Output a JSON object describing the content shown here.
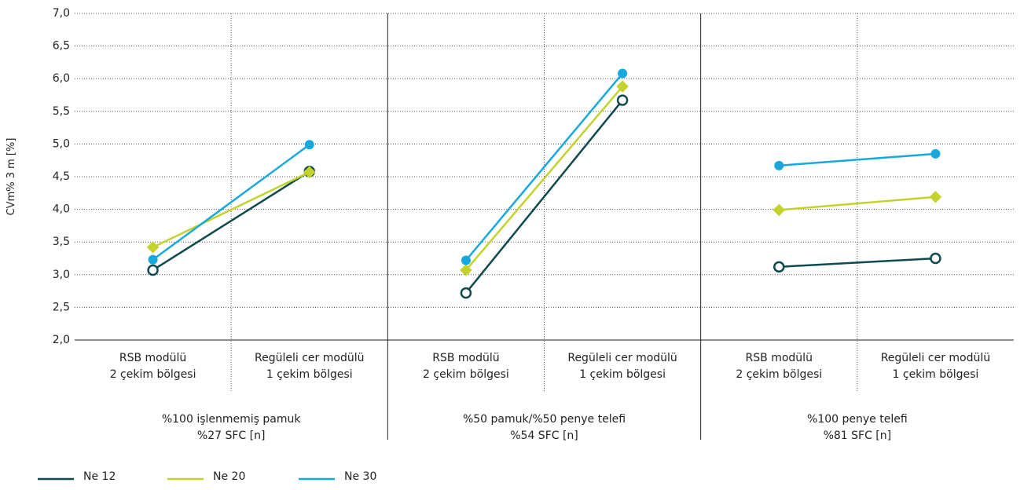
{
  "chart_data": {
    "type": "line",
    "ylabel": "CVm% 3 m [%]",
    "ylim": [
      2.0,
      7.0
    ],
    "y_ticks": [
      "2,0",
      "2,5",
      "3,0",
      "3,5",
      "4,0",
      "4,5",
      "5,0",
      "5,5",
      "6,0",
      "6,5",
      "7,0"
    ],
    "y_tick_values": [
      2.0,
      2.5,
      3.0,
      3.5,
      4.0,
      4.5,
      5.0,
      5.5,
      6.0,
      6.5,
      7.0
    ],
    "grid": "dotted horizontal and vertical",
    "categories": [
      [
        "RSB modülü",
        "2 çekim bölgesi"
      ],
      [
        "Regüleli cer modülü",
        "1 çekim bölgesi"
      ]
    ],
    "groups": [
      {
        "label_line1": "%100 işlenmemiş pamuk",
        "label_line2": "%27 SFC [n]"
      },
      {
        "label_line1": "%50 pamuk/%50 penye telefi",
        "label_line2": "%54 SFC [n]"
      },
      {
        "label_line1": "%100 penye telefi",
        "label_line2": "%81 SFC [n]"
      }
    ],
    "series": [
      {
        "name": "Ne 12",
        "color": "#0f4a4f",
        "marker": "open-circle",
        "values": [
          [
            3.07,
            4.58
          ],
          [
            2.72,
            5.67
          ],
          [
            3.12,
            3.25
          ]
        ]
      },
      {
        "name": "Ne 20",
        "color": "#c3d32b",
        "marker": "square",
        "values": [
          [
            3.42,
            4.57
          ],
          [
            3.07,
            5.88
          ],
          [
            3.99,
            4.19
          ]
        ]
      },
      {
        "name": "Ne 30",
        "color": "#17a9de",
        "marker": "filled-circle",
        "values": [
          [
            3.23,
            4.99
          ],
          [
            3.22,
            6.08
          ],
          [
            4.67,
            4.85
          ]
        ]
      }
    ],
    "legend": "bottom-left"
  }
}
